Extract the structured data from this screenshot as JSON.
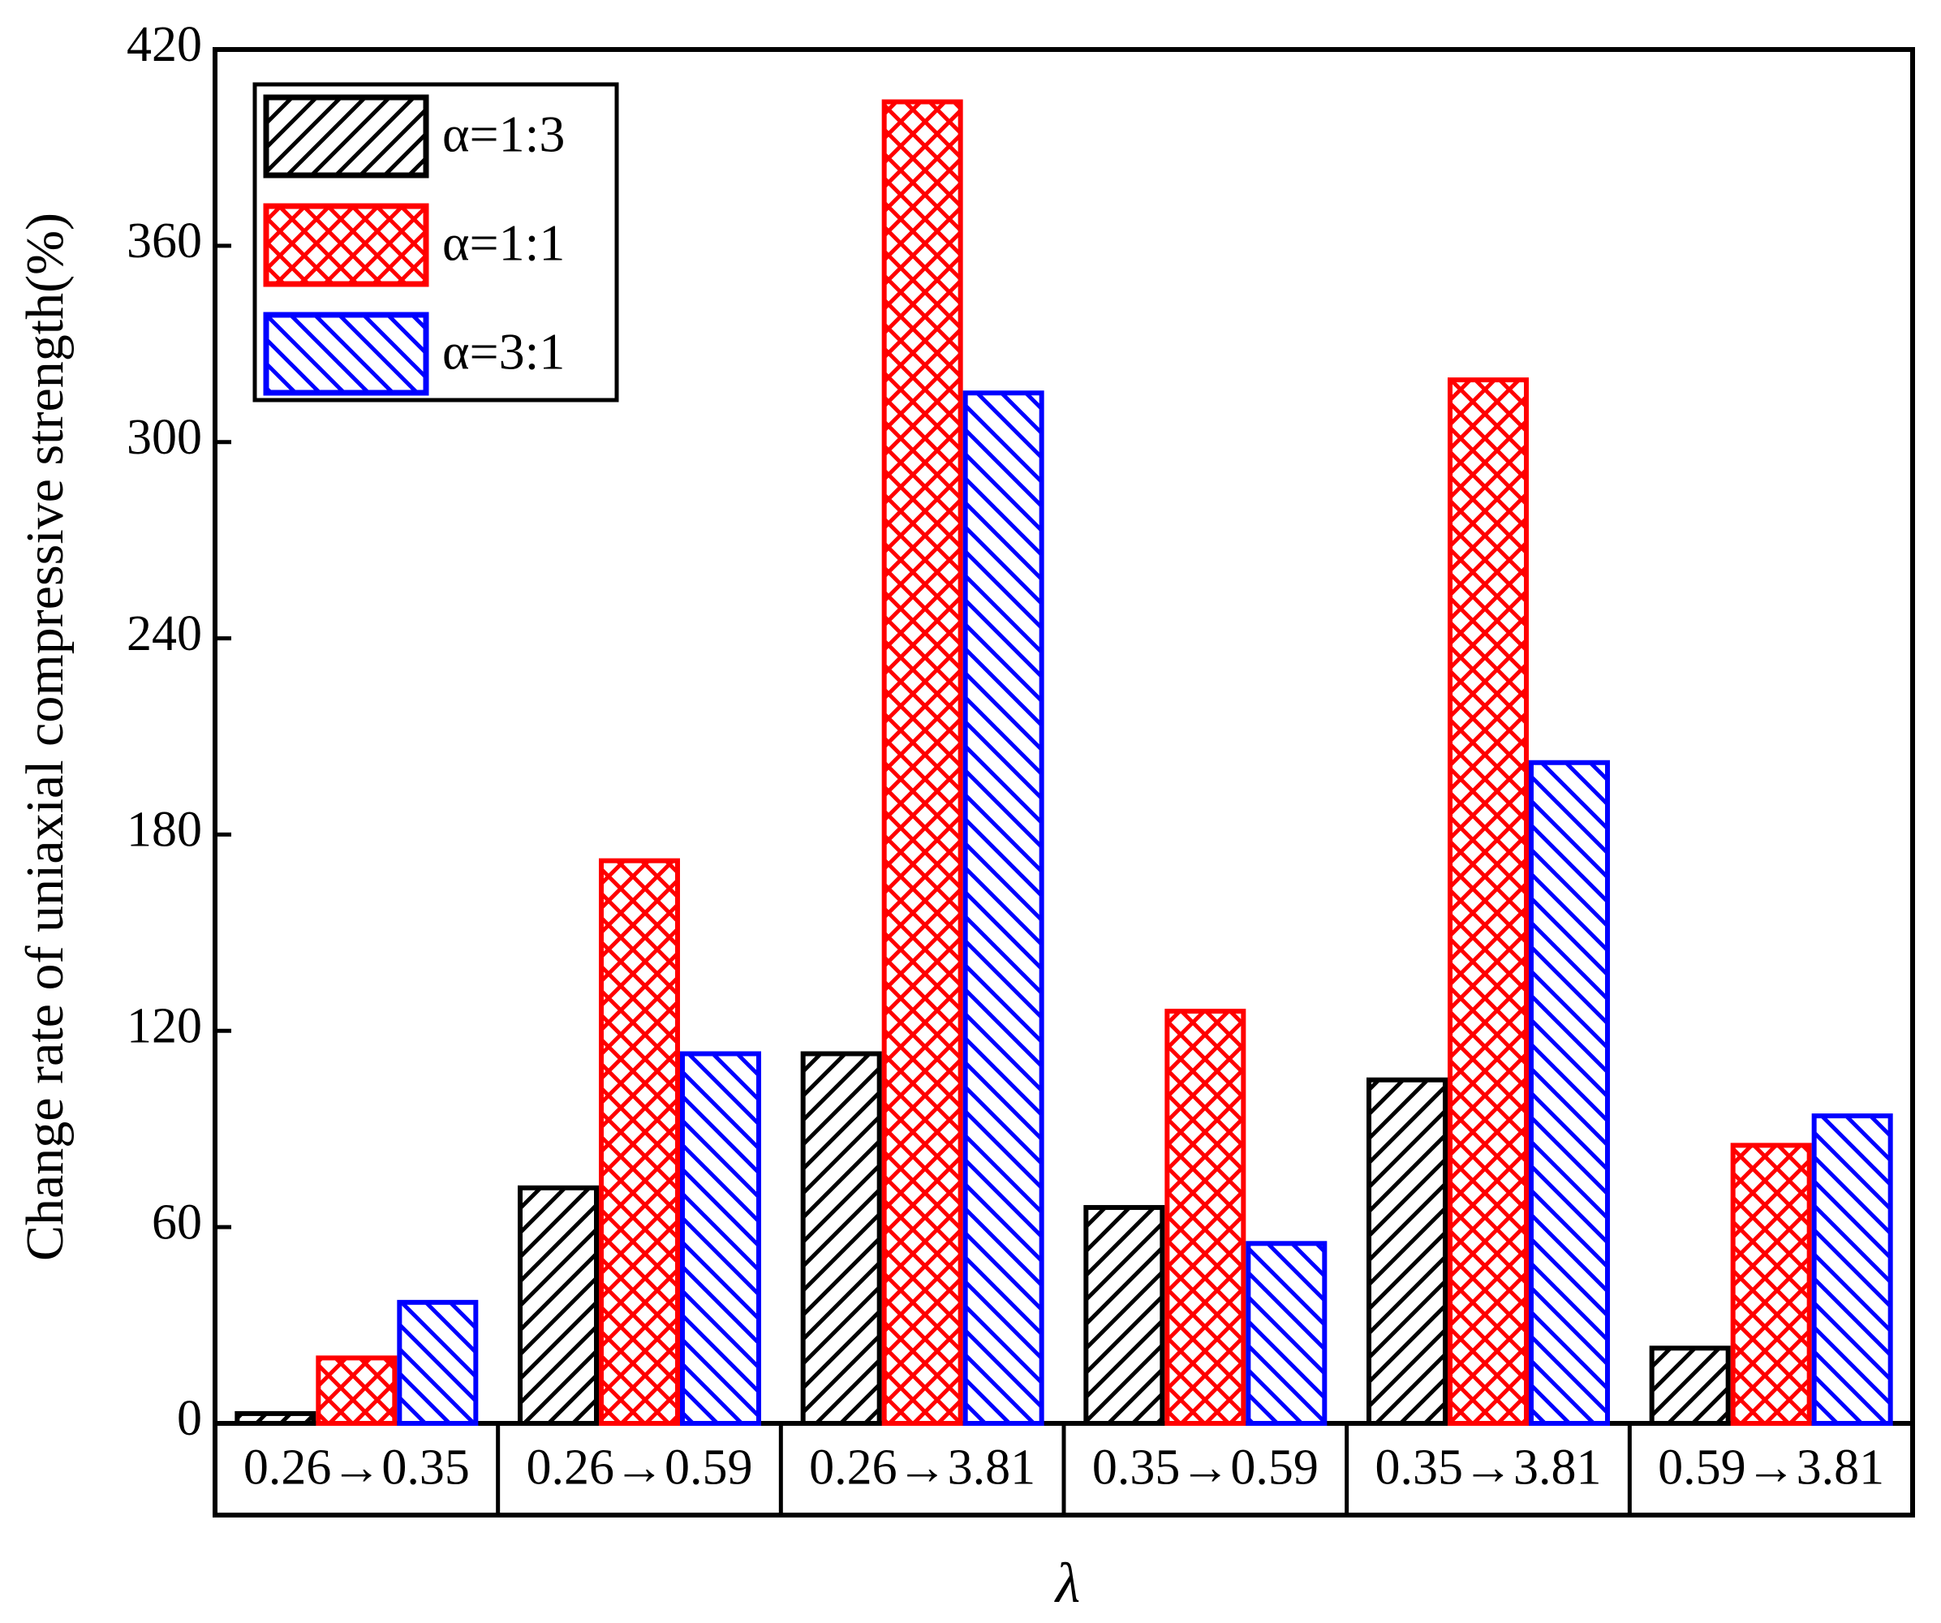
{
  "chart_data": {
    "type": "bar",
    "x_label": "λ",
    "y_label": "Change rate of uniaxial compressive strength(%)",
    "categories": [
      "0.26→0.35",
      "0.26→0.59",
      "0.26→3.81",
      "0.35→0.59",
      "0.35→3.81",
      "0.59→3.81"
    ],
    "series": [
      {
        "name": "α=1:3",
        "color": "#000000",
        "values": [
          3,
          72,
          113,
          66,
          105,
          23
        ]
      },
      {
        "name": "α=1:1",
        "color": "#ff0000",
        "values": [
          20,
          172,
          404,
          126,
          319,
          85
        ]
      },
      {
        "name": "α=3:1",
        "color": "#0000ff",
        "values": [
          37,
          113,
          315,
          55,
          202,
          94
        ]
      }
    ],
    "ylim": [
      0,
      420
    ],
    "yticks": [
      0,
      60,
      120,
      180,
      240,
      300,
      360,
      420
    ],
    "legend": "upper left",
    "grid": false
  }
}
